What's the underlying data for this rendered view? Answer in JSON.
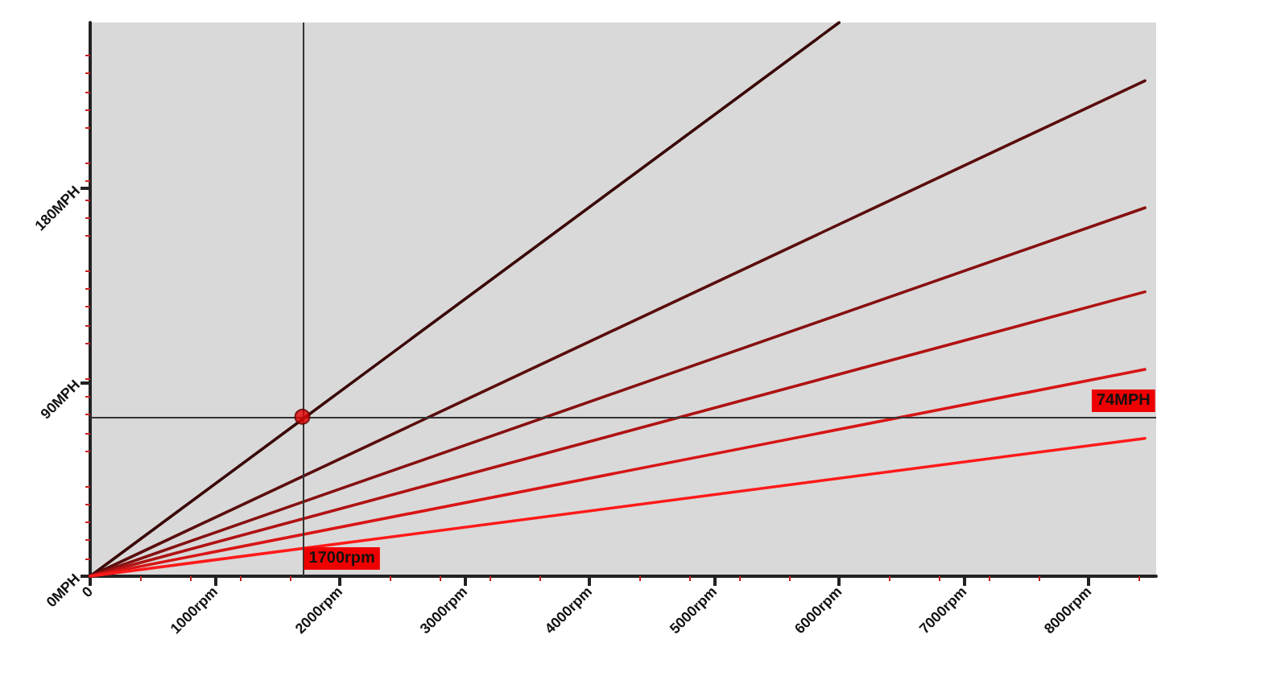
{
  "chart_data": {
    "type": "line",
    "xlim": [
      0,
      8540
    ],
    "ylim": [
      0,
      257
    ],
    "xticks": [
      {
        "value": 0,
        "label": "0"
      },
      {
        "value": 1000,
        "label": "1000rpm"
      },
      {
        "value": 2000,
        "label": "2000rpm"
      },
      {
        "value": 3000,
        "label": "3000rpm"
      },
      {
        "value": 4000,
        "label": "4000rpm"
      },
      {
        "value": 5000,
        "label": "5000rpm"
      },
      {
        "value": 6000,
        "label": "6000rpm"
      },
      {
        "value": 7000,
        "label": "7000rpm"
      },
      {
        "value": 8000,
        "label": "8000rpm"
      }
    ],
    "yticks": [
      {
        "value": 0,
        "label": "0MPH"
      },
      {
        "value": 90,
        "label": "90MPH"
      },
      {
        "value": 180,
        "label": "180MPH"
      }
    ],
    "grid": false,
    "marker": "none",
    "line_style": "solid",
    "series": [
      {
        "color": "#3a0808",
        "x": [
          0,
          6000
        ],
        "values": [
          0,
          257
        ]
      },
      {
        "color": "#5a0c0c",
        "x": [
          0,
          8450
        ],
        "values": [
          0,
          230
        ]
      },
      {
        "color": "#861010",
        "x": [
          0,
          8450
        ],
        "values": [
          0,
          171
        ]
      },
      {
        "color": "#b01212",
        "x": [
          0,
          8450
        ],
        "values": [
          0,
          132
        ]
      },
      {
        "color": "#d81515",
        "x": [
          0,
          8450
        ],
        "values": [
          0,
          96
        ]
      },
      {
        "color": "#ff1a1a",
        "x": [
          0,
          8450
        ],
        "values": [
          0,
          64
        ]
      },
      {
        "type": "scatter",
        "marker": "circle",
        "color": "#e00000",
        "x": [
          1700
        ],
        "values": [
          74
        ]
      }
    ],
    "ref_lines": [
      {
        "axis": "x",
        "value": 1700,
        "label": "1700rpm",
        "color": "#333333"
      },
      {
        "axis": "y",
        "value": 74,
        "label": "74MPH",
        "color": "#333333"
      }
    ]
  }
}
